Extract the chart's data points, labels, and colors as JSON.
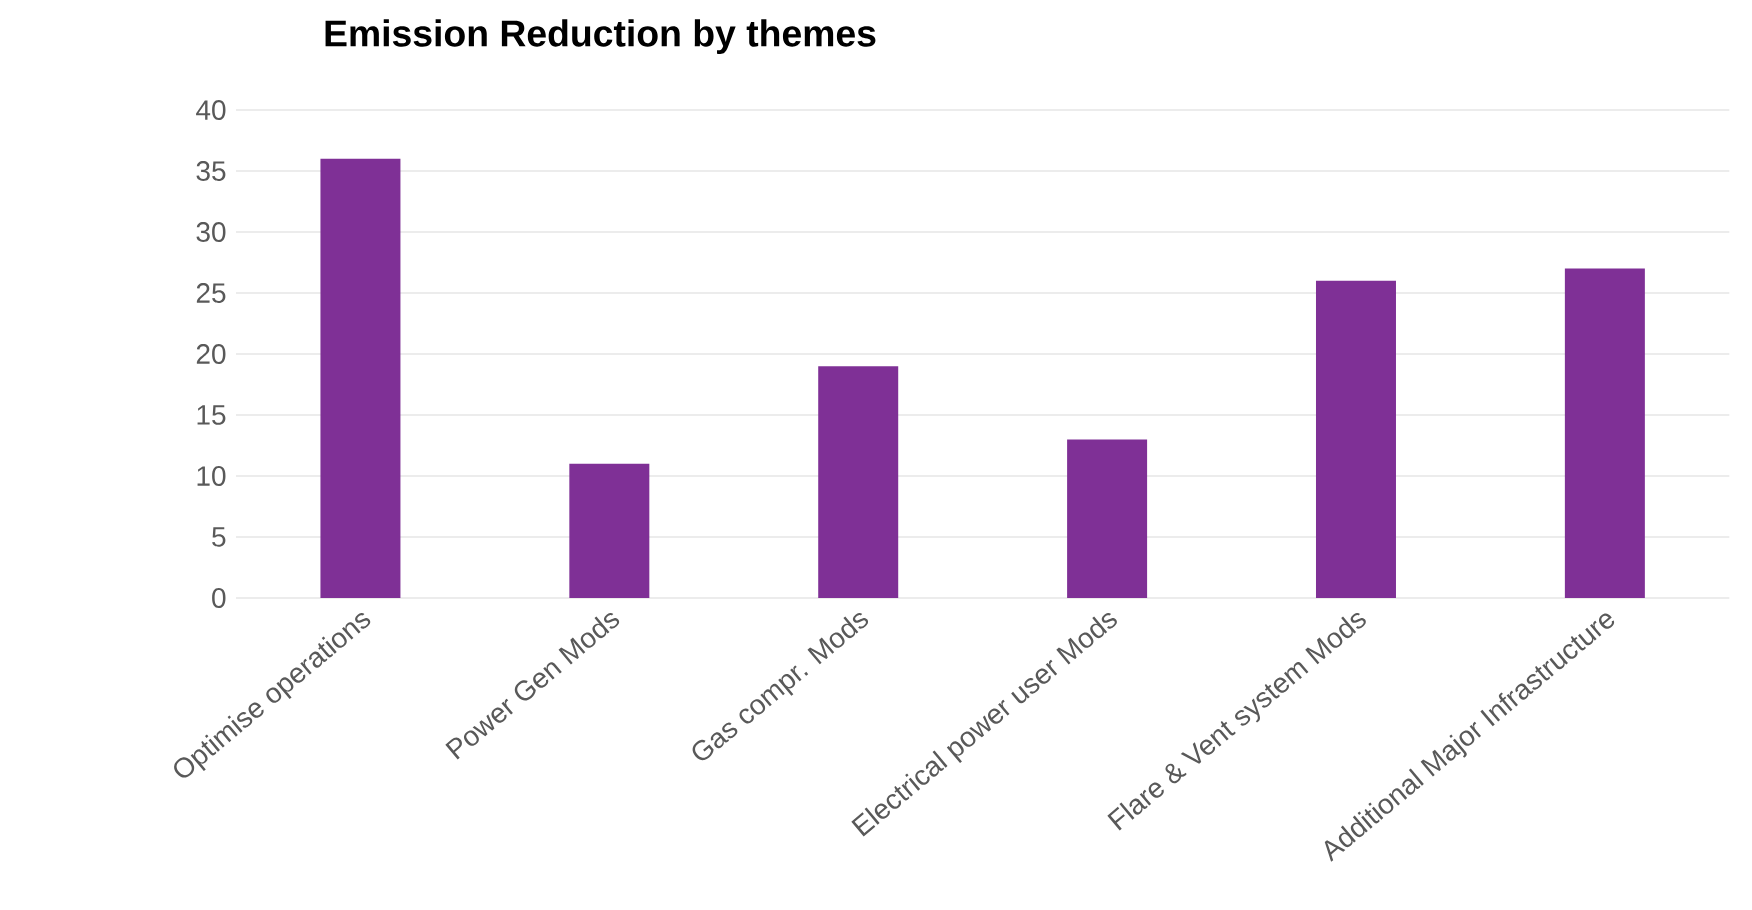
{
  "chart_data": {
    "type": "bar",
    "title": "Emission Reduction by themes",
    "categories": [
      "Optimise operations",
      "Power Gen Mods",
      "Gas compr. Mods",
      "Electrical power user Mods",
      "Flare & Vent system Mods",
      "Additional Major Infrastructure"
    ],
    "values": [
      36,
      11,
      19,
      13,
      26,
      27
    ],
    "color": "#7f3096",
    "ylim": [
      0,
      40
    ],
    "yticks": [
      0,
      5,
      10,
      15,
      20,
      25,
      30,
      35,
      40
    ],
    "grid": "y"
  }
}
